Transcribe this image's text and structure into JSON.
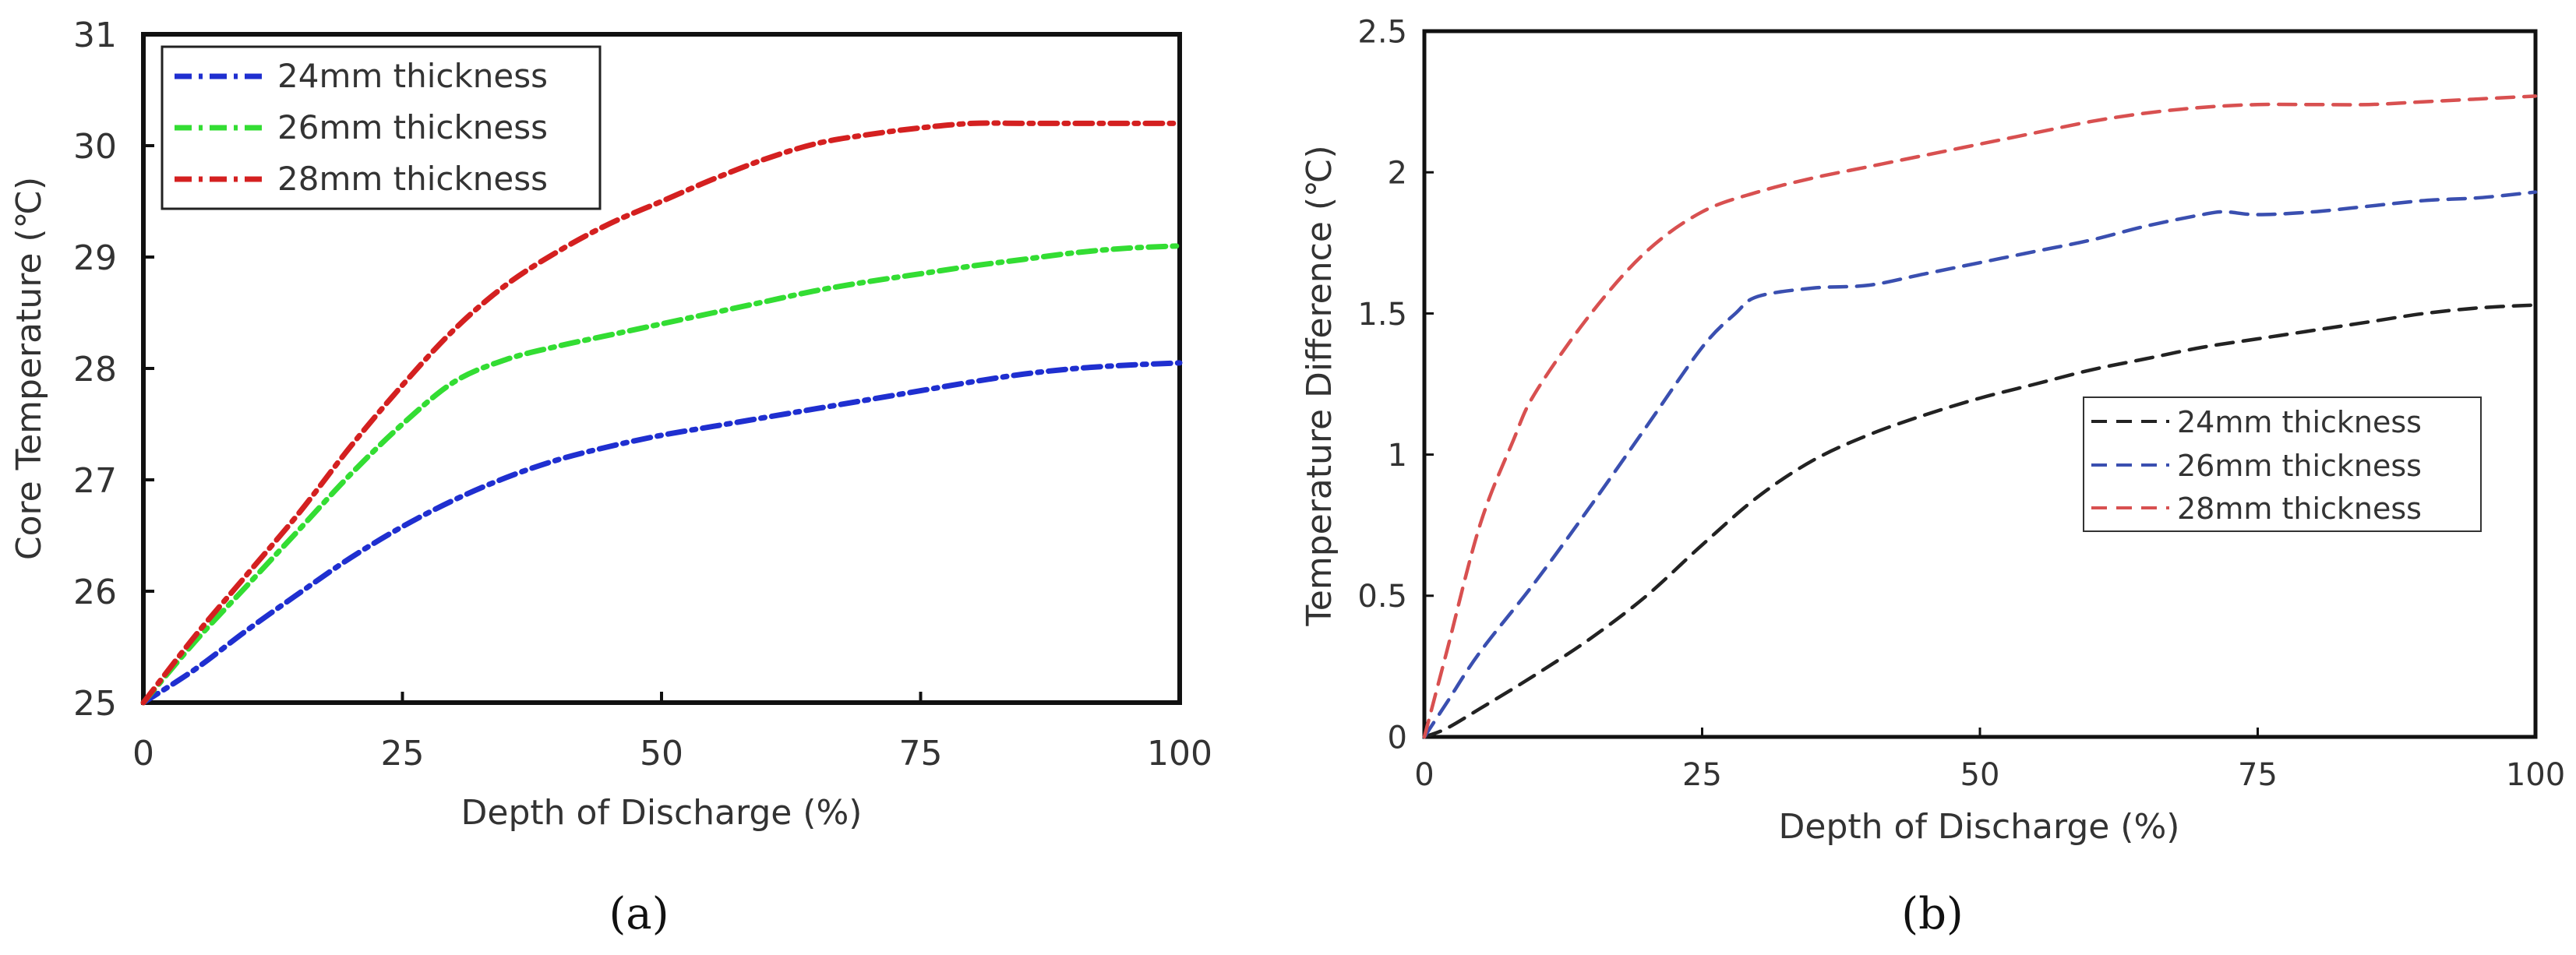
{
  "chart_data": [
    {
      "panel": "a",
      "type": "line",
      "panel_label": "(a)",
      "xlabel": "Depth of Discharge (%)",
      "ylabel": "Core Temperature (℃)",
      "xlim": [
        0,
        100
      ],
      "ylim": [
        25,
        31
      ],
      "xticks": [
        0,
        25,
        50,
        75,
        100
      ],
      "yticks": [
        25,
        26,
        27,
        28,
        29,
        30,
        31
      ],
      "grid": false,
      "legend": "top-left",
      "line_style": "dash-dot",
      "series": [
        {
          "name": "24mm thickness",
          "color": "#1f2fd0",
          "x": [
            0,
            5,
            10,
            15,
            20,
            25,
            30,
            35,
            40,
            45,
            50,
            55,
            60,
            65,
            70,
            75,
            80,
            85,
            90,
            95,
            100
          ],
          "y": [
            25.0,
            25.3,
            25.65,
            25.98,
            26.3,
            26.58,
            26.82,
            27.02,
            27.18,
            27.3,
            27.4,
            27.48,
            27.56,
            27.64,
            27.72,
            27.8,
            27.88,
            27.95,
            28.0,
            28.03,
            28.05
          ]
        },
        {
          "name": "26mm thickness",
          "color": "#33dd33",
          "x": [
            0,
            5,
            10,
            15,
            20,
            25,
            30,
            35,
            40,
            45,
            50,
            55,
            60,
            65,
            70,
            75,
            80,
            85,
            90,
            95,
            100
          ],
          "y": [
            25.0,
            25.55,
            26.05,
            26.55,
            27.05,
            27.5,
            27.88,
            28.08,
            28.2,
            28.3,
            28.4,
            28.5,
            28.6,
            28.7,
            28.78,
            28.85,
            28.92,
            28.98,
            29.04,
            29.08,
            29.1
          ]
        },
        {
          "name": "28mm thickness",
          "color": "#d42020",
          "x": [
            0,
            5,
            10,
            15,
            20,
            25,
            30,
            35,
            40,
            45,
            50,
            55,
            60,
            65,
            70,
            75,
            80,
            85,
            90,
            95,
            100
          ],
          "y": [
            25.0,
            25.6,
            26.15,
            26.7,
            27.3,
            27.85,
            28.35,
            28.75,
            29.05,
            29.3,
            29.5,
            29.7,
            29.88,
            30.02,
            30.1,
            30.16,
            30.2,
            30.2,
            30.2,
            30.2,
            30.2
          ]
        }
      ]
    },
    {
      "panel": "b",
      "type": "line",
      "panel_label": "(b)",
      "xlabel": "Depth of Discharge (%)",
      "ylabel": "Temperature Difference (℃)",
      "xlim": [
        0,
        100
      ],
      "ylim": [
        0,
        2.5
      ],
      "xticks": [
        0,
        25,
        50,
        75,
        100
      ],
      "yticks": [
        0,
        0.5,
        1,
        1.5,
        2,
        2.5
      ],
      "ytick_labels": [
        "0",
        "0.5",
        "1",
        "1.5",
        "2",
        "2.5"
      ],
      "grid": false,
      "legend": "center-right",
      "line_style": "dashed",
      "series": [
        {
          "name": "24mm thickness",
          "color": "#222222",
          "x": [
            0,
            2,
            5,
            10,
            15,
            20,
            25,
            30,
            35,
            40,
            45,
            50,
            55,
            60,
            65,
            70,
            75,
            80,
            85,
            90,
            95,
            100
          ],
          "y": [
            0,
            0.03,
            0.1,
            0.22,
            0.35,
            0.5,
            0.68,
            0.85,
            0.98,
            1.07,
            1.14,
            1.2,
            1.25,
            1.3,
            1.34,
            1.38,
            1.41,
            1.44,
            1.47,
            1.5,
            1.52,
            1.53
          ]
        },
        {
          "name": "26mm thickness",
          "color": "#3a4fb0",
          "x": [
            0,
            2,
            5,
            10,
            15,
            20,
            25,
            28,
            30,
            35,
            40,
            45,
            50,
            55,
            60,
            65,
            70,
            72,
            75,
            80,
            85,
            90,
            95,
            100
          ],
          "y": [
            0,
            0.12,
            0.3,
            0.55,
            0.82,
            1.1,
            1.38,
            1.5,
            1.56,
            1.59,
            1.6,
            1.64,
            1.68,
            1.72,
            1.76,
            1.81,
            1.85,
            1.86,
            1.85,
            1.86,
            1.88,
            1.9,
            1.91,
            1.93
          ]
        },
        {
          "name": "28mm thickness",
          "color": "#d85050",
          "x": [
            0,
            2,
            5,
            8,
            10,
            15,
            20,
            25,
            30,
            35,
            40,
            45,
            50,
            55,
            60,
            65,
            70,
            75,
            80,
            85,
            90,
            95,
            100
          ],
          "y": [
            0,
            0.3,
            0.75,
            1.05,
            1.22,
            1.5,
            1.72,
            1.86,
            1.93,
            1.98,
            2.02,
            2.06,
            2.1,
            2.14,
            2.18,
            2.21,
            2.23,
            2.24,
            2.24,
            2.24,
            2.25,
            2.26,
            2.27
          ]
        }
      ]
    }
  ]
}
